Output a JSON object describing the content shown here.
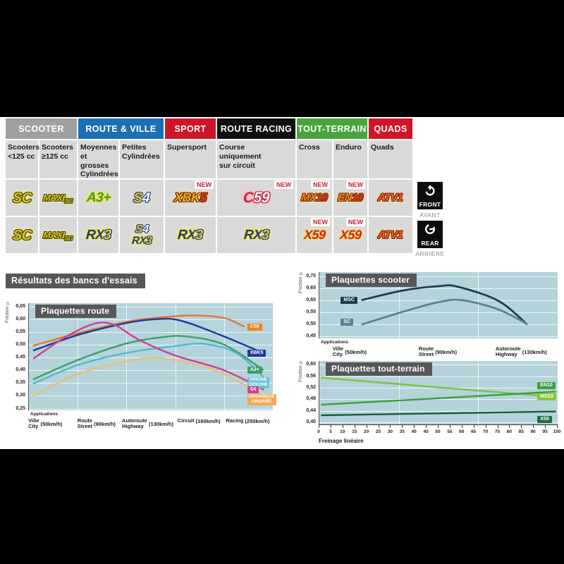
{
  "table": {
    "categories": [
      {
        "label": "SCOOTER",
        "color": "#a0a0a0",
        "span": 2
      },
      {
        "label": "ROUTE & VILLE",
        "color": "#1a6fb5",
        "span": 2
      },
      {
        "label": "SPORT",
        "color": "#ce1726",
        "span": 1
      },
      {
        "label": "ROUTE RACING",
        "color": "#101010",
        "span": 1
      },
      {
        "label": "TOUT-TERRAIN",
        "color": "#48a43d",
        "span": 2
      },
      {
        "label": "QUADS",
        "color": "#ce1726",
        "span": 1
      }
    ],
    "subheaders": [
      [
        "Scooters",
        "<125 cc"
      ],
      [
        "Scooters",
        "≥125 cc"
      ],
      [
        "Moyennes",
        "et grosses",
        "Cylindrées"
      ],
      [
        "Petites",
        "Cylindrées"
      ],
      [
        "Supersport"
      ],
      [
        "Course",
        "uniquement",
        "sur circuit"
      ],
      [
        "Cross"
      ],
      [
        "Enduro"
      ],
      [
        "Quads"
      ]
    ],
    "new_label": "NEW",
    "front_row": [
      {
        "badges": [
          "SC"
        ]
      },
      {
        "badges": [
          "MAXISC"
        ]
      },
      {
        "badges": [
          "A3plus"
        ]
      },
      {
        "badges": [
          "S4"
        ]
      },
      {
        "badges": [
          "XBK5"
        ],
        "new": true
      },
      {
        "badges": [
          "C59"
        ],
        "new": true
      },
      {
        "badges": [
          "MX10"
        ],
        "new": true
      },
      {
        "badges": [
          "EN10"
        ],
        "new": true
      },
      {
        "badges": [
          "ATV1"
        ]
      }
    ],
    "rear_row": [
      {
        "badges": [
          "SC"
        ]
      },
      {
        "badges": [
          "MAXISC"
        ]
      },
      {
        "badges": [
          "RX3"
        ]
      },
      {
        "badges": [
          "S4",
          "RX3"
        ]
      },
      {
        "badges": [
          "RX3"
        ]
      },
      {
        "badges": [
          "RX3"
        ]
      },
      {
        "badges": [
          "X59"
        ],
        "new": true
      },
      {
        "badges": [
          "X59"
        ],
        "new": true
      },
      {
        "badges": [
          "ATV1"
        ]
      }
    ],
    "badge_styles": {
      "SC": {
        "size": 20,
        "g": "#fdf6a0",
        "parts": [
          {
            "t": "SC",
            "c": "#ddc91c",
            "o": "#4a4400"
          }
        ]
      },
      "MAXISC": {
        "g": "#fdf6a0",
        "parts": [
          {
            "t": "MAXI",
            "c": "#d8c41c",
            "o": "#4a4400",
            "size": 13
          },
          {
            "t": "SC",
            "c": "#d8c41c",
            "o": "#4a4400",
            "size": 9,
            "dy": 3
          }
        ]
      },
      "A3plus": {
        "size": 19,
        "g": "#f2eda6",
        "parts": [
          {
            "t": "A3+",
            "c": "#3f9e2f",
            "o": "#e8df2a"
          }
        ]
      },
      "S4": {
        "size": 20,
        "g": "#fdf6a0",
        "parts": [
          {
            "t": "S",
            "c": "#eebd1e",
            "o": "#23418f"
          },
          {
            "t": "4",
            "c": "#f4f4f8",
            "o": "#23418f"
          }
        ]
      },
      "XBK5": {
        "size": 18,
        "g": "#f6e9b0",
        "parts": [
          {
            "t": "XBK",
            "c": "#f2ad12",
            "o": "#6e2a06"
          },
          {
            "t": "5",
            "c": "#e23812",
            "o": "#6e2a06"
          }
        ]
      },
      "C59": {
        "size": 21,
        "g": "#f6bcc8",
        "parts": [
          {
            "t": "C",
            "c": "#d41c30",
            "o": "#f4b8c4"
          },
          {
            "t": "59",
            "c": "#ffffff",
            "o": "#c81228"
          }
        ]
      },
      "MX10": {
        "size": 15,
        "g": "#f6e9b0",
        "parts": [
          {
            "t": "MX",
            "c": "#ef8812",
            "o": "#7a2a06"
          },
          {
            "t": "10",
            "c": "#e23812",
            "o": "#7a2a06"
          }
        ]
      },
      "EN10": {
        "size": 15,
        "g": "#f6e9b0",
        "parts": [
          {
            "t": "EN",
            "c": "#ef8812",
            "o": "#7a2a06"
          },
          {
            "t": "10",
            "c": "#e23812",
            "o": "#7a2a06"
          }
        ]
      },
      "ATV1": {
        "size": 15,
        "g": "#f6d9a0",
        "parts": [
          {
            "t": "ATV1",
            "c": "#e8641a",
            "o": "#8a2408"
          }
        ]
      },
      "RX3": {
        "size": 19,
        "g": "#fdf6a0",
        "parts": [
          {
            "t": "RX",
            "c": "#1e3a8f",
            "o": "#eedc26"
          },
          {
            "t": "3",
            "c": "#eecb1e",
            "o": "#1e3a8f"
          }
        ]
      },
      "X59": {
        "size": 18,
        "g": "#f6e9b0",
        "parts": [
          {
            "t": "X59",
            "c": "#d42014",
            "o": "#f2dc7a"
          }
        ]
      }
    }
  },
  "side_badges": {
    "front": {
      "label": "FRONT",
      "sub": "AVANT"
    },
    "rear": {
      "label": "REAR",
      "sub": "ARRIÈRE"
    }
  },
  "section_title": "Résultats des bancs d'essais",
  "chart_data": [
    {
      "id": "route",
      "type": "line",
      "title": "Plaquettes route",
      "ylabel": "Friction µ",
      "applications_label": "Applications",
      "ylim": [
        0.25,
        0.65
      ],
      "yticks": [
        "0,65",
        "0,60",
        "0,55",
        "0,50",
        "0,45",
        "0,40",
        "0,35",
        "0,30",
        "0,25"
      ],
      "x_labels": [
        {
          "fr": "Ville",
          "en": "City",
          "speed": "(50km/h)"
        },
        {
          "fr": "Route",
          "en": "Street",
          "speed": "(90km/h)"
        },
        {
          "fr": "Autoroute",
          "en": "Highway",
          "speed": "(130km/h)"
        },
        {
          "fr": "Circuit",
          "en": "",
          "speed": "(180km/h)"
        },
        {
          "fr": "Racing",
          "en": "",
          "speed": "(250km/h)"
        }
      ],
      "series": [
        {
          "name": "C59",
          "color": "#e07828",
          "label_bg": "#ef8322",
          "label_lines": [
            "C59"
          ],
          "label_y": 0.57,
          "points": [
            [
              0.02,
              0.497
            ],
            [
              0.2,
              0.545
            ],
            [
              0.4,
              0.59
            ],
            [
              0.55,
              0.608
            ],
            [
              0.68,
              0.615
            ],
            [
              0.8,
              0.605
            ],
            [
              0.88,
              0.572
            ]
          ]
        },
        {
          "name": "XBK5",
          "color": "#1c3a9e",
          "label_bg": "#27359e",
          "label_lines": [
            "XBK5"
          ],
          "label_y": 0.468,
          "points": [
            [
              0.02,
              0.478
            ],
            [
              0.2,
              0.538
            ],
            [
              0.4,
              0.585
            ],
            [
              0.52,
              0.6
            ],
            [
              0.62,
              0.595
            ],
            [
              0.78,
              0.54
            ],
            [
              0.96,
              0.468
            ]
          ]
        },
        {
          "name": "A3+",
          "color": "#3aa06a",
          "label_bg": "#36a25e",
          "label_lines": [
            "A3+"
          ],
          "label_y": 0.402,
          "points": [
            [
              0.02,
              0.365
            ],
            [
              0.2,
              0.44
            ],
            [
              0.4,
              0.505
            ],
            [
              0.55,
              0.53
            ],
            [
              0.65,
              0.532
            ],
            [
              0.8,
              0.5
            ],
            [
              0.96,
              0.402
            ]
          ]
        },
        {
          "name": "ORIGINE / GENUINE",
          "color": "#52b8cc",
          "label_bg": "#63c3d6",
          "label_lines": [
            "ORIGINE",
            "GENUINE"
          ],
          "label_y": 0.352,
          "points": [
            [
              0.02,
              0.348
            ],
            [
              0.2,
              0.42
            ],
            [
              0.4,
              0.468
            ],
            [
              0.6,
              0.495
            ],
            [
              0.72,
              0.503
            ],
            [
              0.85,
              0.468
            ],
            [
              0.96,
              0.375
            ]
          ]
        },
        {
          "name": "S4",
          "color": "#cf3f92",
          "label_bg": "#da3f98",
          "label_lines": [
            "S4"
          ],
          "label_y": 0.322,
          "points": [
            [
              0.02,
              0.447
            ],
            [
              0.15,
              0.53
            ],
            [
              0.27,
              0.583
            ],
            [
              0.35,
              0.578
            ],
            [
              0.45,
              0.52
            ],
            [
              0.6,
              0.458
            ],
            [
              0.8,
              0.4
            ],
            [
              0.96,
              0.325
            ]
          ]
        },
        {
          "name": "ORGANIQUE / ORGANIC",
          "color": "#e6c078",
          "label_bg": "#f2a953",
          "label_lines": [
            "ORGANIQUE",
            "ORGANIC"
          ],
          "label_y": 0.285,
          "points": [
            [
              0.02,
              0.3
            ],
            [
              0.2,
              0.385
            ],
            [
              0.4,
              0.435
            ],
            [
              0.52,
              0.448
            ],
            [
              0.65,
              0.43
            ],
            [
              0.8,
              0.385
            ],
            [
              0.96,
              0.3
            ]
          ]
        }
      ]
    },
    {
      "id": "scooter",
      "type": "line",
      "title": "Plaquettes scooter",
      "ylabel": "Friction µ",
      "applications_label": "Applications",
      "ylim": [
        0.45,
        0.7
      ],
      "yticks": [
        "0,70",
        "0,65",
        "0,60",
        "0,55",
        "0,50",
        "0,45"
      ],
      "x_labels": [
        {
          "fr": "Ville",
          "en": "City",
          "speed": "(50km/h)"
        },
        {
          "fr": "Route",
          "en": "Street",
          "speed": "(90km/h)"
        },
        {
          "fr": "Autoroute",
          "en": "Highway",
          "speed": "(130km/h)"
        }
      ],
      "series": [
        {
          "name": "MSC",
          "color": "#1e3f52",
          "label_bg": "#1d3d50",
          "label_lines": [
            "MSC"
          ],
          "label_y": 0.601,
          "label_side": "left",
          "points": [
            [
              0.18,
              0.601
            ],
            [
              0.35,
              0.64
            ],
            [
              0.5,
              0.658
            ],
            [
              0.58,
              0.656
            ],
            [
              0.75,
              0.598
            ],
            [
              0.87,
              0.502
            ]
          ]
        },
        {
          "name": "SC",
          "color": "#5c8196",
          "label_bg": "#5c8196",
          "label_lines": [
            "SC"
          ],
          "label_y": 0.508,
          "label_side": "left",
          "points": [
            [
              0.18,
              0.5
            ],
            [
              0.35,
              0.552
            ],
            [
              0.5,
              0.592
            ],
            [
              0.6,
              0.6
            ],
            [
              0.75,
              0.562
            ],
            [
              0.87,
              0.503
            ]
          ]
        }
      ]
    },
    {
      "id": "terrain",
      "type": "line",
      "title": "Plaquettes tout-terrain",
      "ylabel": "Friction µ",
      "xlabel": "Freinage linéaire",
      "ylim": [
        0.4,
        0.6
      ],
      "yticks": [
        "0,60",
        "0,56",
        "0,52",
        "0,48",
        "0,44",
        "0,40"
      ],
      "x_ticks": [
        "0",
        "5",
        "10",
        "15",
        "20",
        "25",
        "30",
        "35",
        "40",
        "45",
        "50",
        "55",
        "60",
        "65",
        "70",
        "75",
        "80",
        "85",
        "90",
        "95",
        "100"
      ],
      "series": [
        {
          "name": "MX10",
          "color": "#7cc242",
          "label_bg": "#8cc832",
          "label_lines": [
            "MX10"
          ],
          "label_y": 0.487,
          "points": [
            [
              0.01,
              0.555
            ],
            [
              0.5,
              0.521
            ],
            [
              0.99,
              0.488
            ]
          ]
        },
        {
          "name": "EN10",
          "color": "#3f9e3c",
          "label_bg": "#3f9e3c",
          "label_lines": [
            "EN10"
          ],
          "label_y": 0.526,
          "points": [
            [
              0.01,
              0.461
            ],
            [
              0.5,
              0.483
            ],
            [
              0.99,
              0.506
            ]
          ]
        },
        {
          "name": "X59",
          "color": "#175c34",
          "label_bg": "#1e6e40",
          "label_lines": [
            "X59"
          ],
          "label_y": 0.41,
          "points": [
            [
              0.01,
              0.424
            ],
            [
              0.99,
              0.437
            ]
          ]
        }
      ]
    }
  ]
}
